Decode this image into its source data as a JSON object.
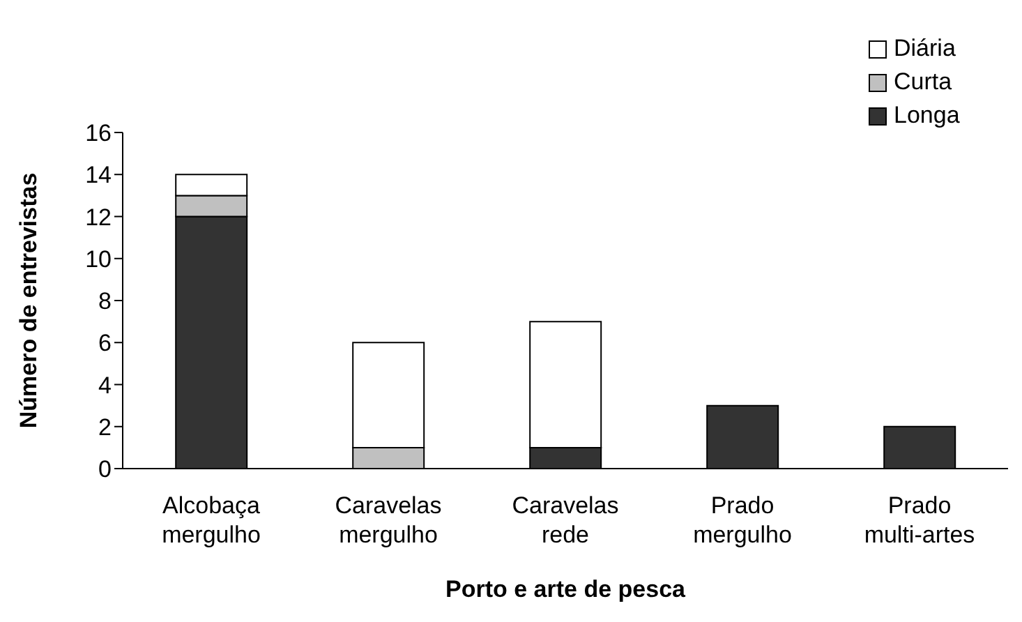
{
  "chart_data": {
    "type": "bar",
    "stacked": true,
    "xlabel": "Porto e arte de pesca",
    "ylabel": "Número de entrevistas",
    "categories": [
      "Alcobaça mergulho",
      "Caravelas mergulho",
      "Caravelas rede",
      "Prado mergulho",
      "Prado multi-artes"
    ],
    "series": [
      {
        "name": "Longa",
        "color": "#333333",
        "values": [
          12,
          0,
          1,
          3,
          2
        ]
      },
      {
        "name": "Curta",
        "color": "#c0c0c0",
        "values": [
          1,
          1,
          0,
          0,
          0
        ]
      },
      {
        "name": "Diária",
        "color": "#ffffff",
        "values": [
          1,
          5,
          6,
          0,
          0
        ]
      }
    ],
    "ylim": [
      0,
      16
    ],
    "yticks": [
      0,
      2,
      4,
      6,
      8,
      10,
      12,
      14,
      16
    ],
    "grid": false,
    "legend": "top right"
  }
}
